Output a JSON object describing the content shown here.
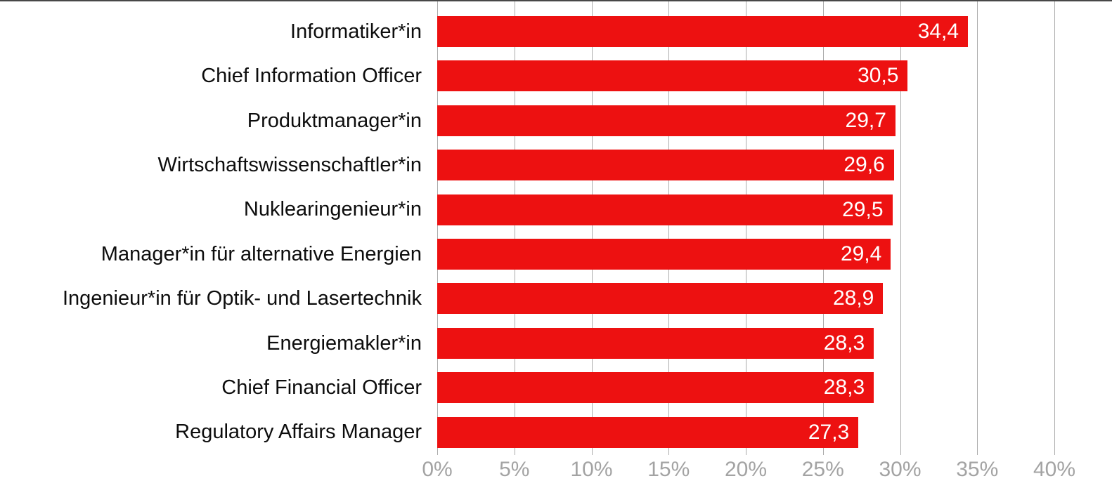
{
  "chart_data": {
    "type": "bar",
    "orientation": "horizontal",
    "title": "",
    "xlabel": "",
    "ylabel": "",
    "categories": [
      "Informatiker*in",
      "Chief Information Officer",
      "Produktmanager*in",
      "Wirtschaftswissenschaftler*in",
      "Nuklearingenieur*in",
      "Manager*in für alternative Energien",
      "Ingenieur*in für Optik- und Lasertechnik",
      "Energiemakler*in",
      "Chief Financial Officer",
      "Regulatory Affairs Manager"
    ],
    "values": [
      34.4,
      30.5,
      29.7,
      29.6,
      29.5,
      29.4,
      28.9,
      28.3,
      28.3,
      27.3
    ],
    "value_labels": [
      "34,4",
      "30,5",
      "29,7",
      "29,6",
      "29,5",
      "29,4",
      "28,9",
      "28,3",
      "28,3",
      "27,3"
    ],
    "xlim": [
      0,
      40
    ],
    "x_tick_values": [
      0,
      5,
      10,
      15,
      20,
      25,
      30,
      35,
      40
    ],
    "x_tick_labels": [
      "0%",
      "5%",
      "10%",
      "15%",
      "20%",
      "25%",
      "30%",
      "35%",
      "40%"
    ],
    "grid": "vertical",
    "legend": "none",
    "value_label_position": "inside-end",
    "colors": {
      "bar": "#ED1111",
      "bar_value_text": "#FFFFFF",
      "category_text": "#0D0D0D",
      "tick_text": "#A3A3A3",
      "gridline": "#ABABAB",
      "top_rule": "#474747",
      "background": "#FFFFFF"
    }
  }
}
